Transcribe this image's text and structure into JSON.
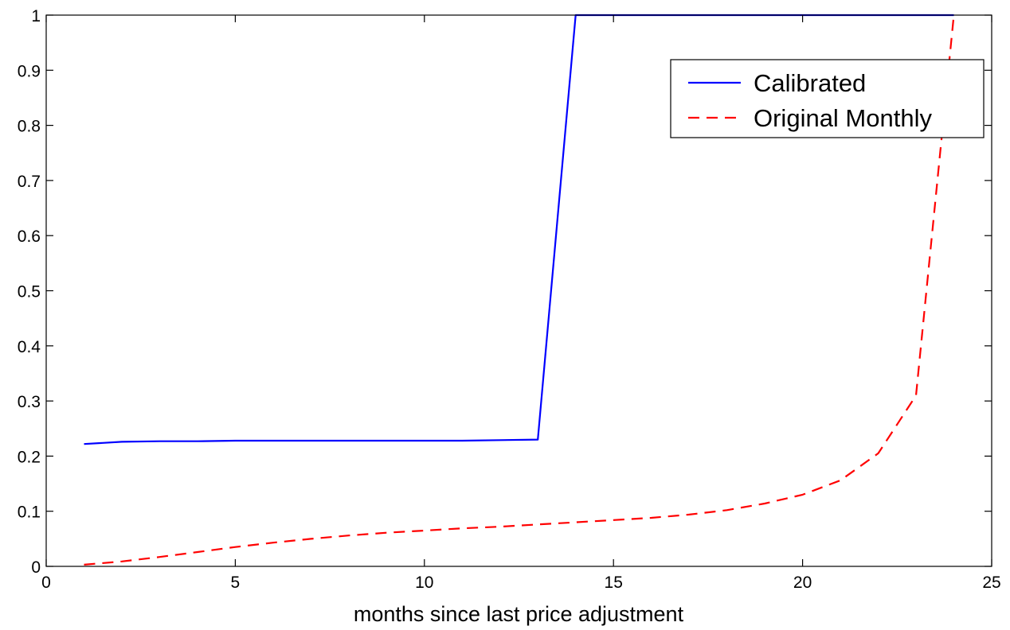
{
  "chart_data": {
    "type": "line",
    "title": "",
    "xlabel": "months since last price adjustment",
    "ylabel": "",
    "xlim": [
      0,
      25
    ],
    "ylim": [
      0,
      1
    ],
    "x_ticks": [
      "0",
      "5",
      "10",
      "15",
      "20",
      "25"
    ],
    "y_ticks": [
      "0",
      "0.1",
      "0.2",
      "0.3",
      "0.4",
      "0.5",
      "0.6",
      "0.7",
      "0.8",
      "0.9",
      "1"
    ],
    "grid": false,
    "legend_position": "top-right",
    "series": [
      {
        "name": "Calibrated",
        "color": "#0000ff",
        "style": "solid",
        "x": [
          1,
          2,
          3,
          4,
          5,
          6,
          7,
          8,
          9,
          10,
          11,
          12,
          13,
          14,
          15,
          16,
          17,
          18,
          19,
          20,
          21,
          22,
          23,
          24
        ],
        "y": [
          0.222,
          0.226,
          0.227,
          0.227,
          0.228,
          0.228,
          0.228,
          0.228,
          0.228,
          0.228,
          0.228,
          0.229,
          0.23,
          1.0,
          1.0,
          1.0,
          1.0,
          1.0,
          1.0,
          1.0,
          1.0,
          1.0,
          1.0,
          1.0
        ]
      },
      {
        "name": "Original Monthly",
        "color": "#ff0000",
        "style": "dashed",
        "x": [
          1,
          2,
          3,
          4,
          5,
          6,
          7,
          8,
          9,
          10,
          11,
          12,
          13,
          14,
          15,
          16,
          17,
          18,
          19,
          20,
          21,
          22,
          23,
          24
        ],
        "y": [
          0.003,
          0.009,
          0.017,
          0.026,
          0.035,
          0.043,
          0.05,
          0.056,
          0.061,
          0.065,
          0.069,
          0.072,
          0.076,
          0.08,
          0.084,
          0.088,
          0.094,
          0.102,
          0.114,
          0.13,
          0.156,
          0.205,
          0.31,
          1.0
        ]
      }
    ]
  }
}
